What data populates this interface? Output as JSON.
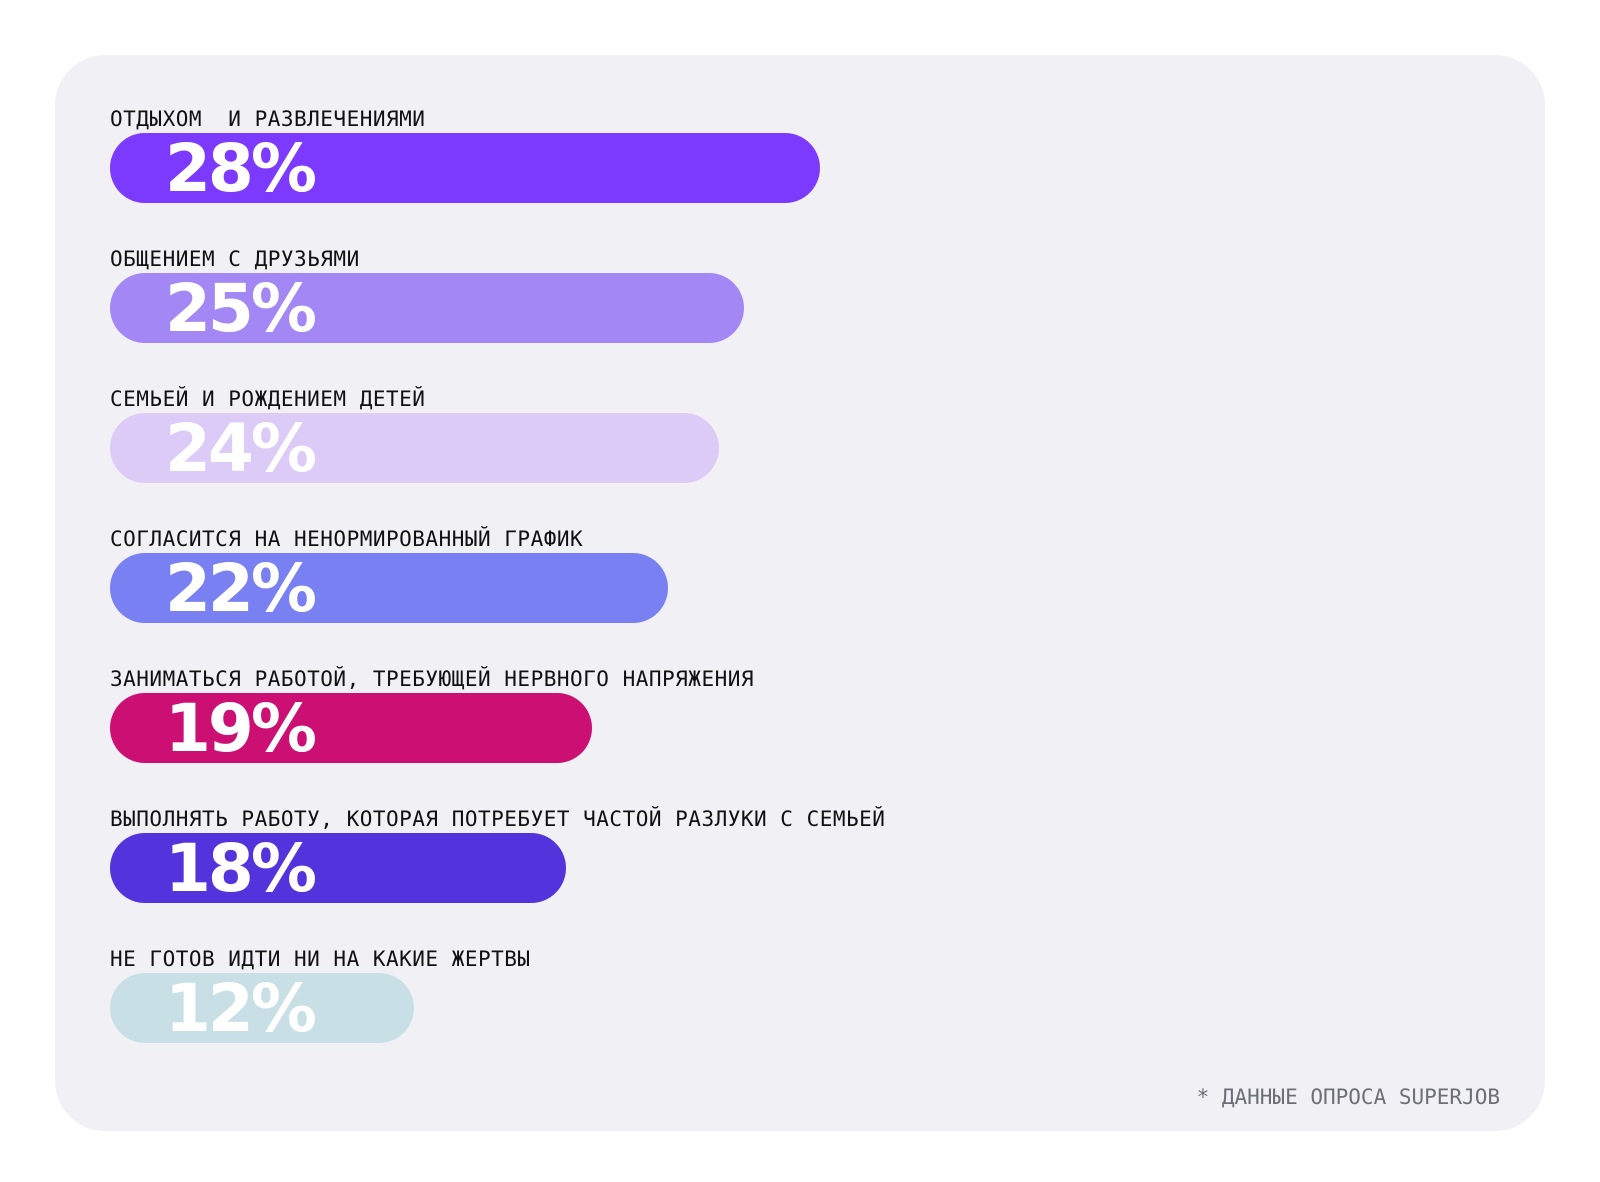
{
  "chart_data": {
    "type": "bar",
    "orientation": "horizontal",
    "categories": [
      "ОТДЫХОМ  И РАЗВЛЕЧЕНИЯМИ",
      "ОБЩЕНИЕМ С ДРУЗЬЯМИ",
      "СЕМЬЕЙ И РОЖДЕНИЕМ ДЕТЕЙ",
      "СОГЛАСИТСЯ НА НЕНОРМИРОВАННЫЙ ГРАФИК",
      "ЗАНИМАТЬСЯ РАБОТОЙ, ТРЕБУЮЩЕЙ НЕРВНОГО НАПРЯЖЕНИЯ",
      "ВЫПОЛНЯТЬ РАБОТУ, КОТОРАЯ ПОТРЕБУЕТ ЧАСТОЙ РАЗЛУКИ С СЕМЬЕЙ",
      "НЕ ГОТОВ ИДТИ НИ НА КАКИЕ ЖЕРТВЫ"
    ],
    "values": [
      28,
      25,
      24,
      22,
      19,
      18,
      12
    ],
    "value_labels": [
      "28%",
      "25%",
      "24%",
      "22%",
      "19%",
      "18%",
      "12%"
    ],
    "bar_colors": [
      "#7c3aff",
      "#a388f5",
      "#dccbf7",
      "#7880f2",
      "#cc0f73",
      "#5233dc",
      "#c8e0e5"
    ],
    "label_color": "#ffffff",
    "title": "",
    "xlabel": "",
    "ylabel": "",
    "xlim": [
      0,
      28
    ],
    "grid": false
  },
  "footnote": "* ДАННЫЕ ОПРОСА SUPERJOB",
  "colors": {
    "card_background": "#f0f0f5",
    "text": "#111111",
    "footnote": "#6e6e78"
  }
}
